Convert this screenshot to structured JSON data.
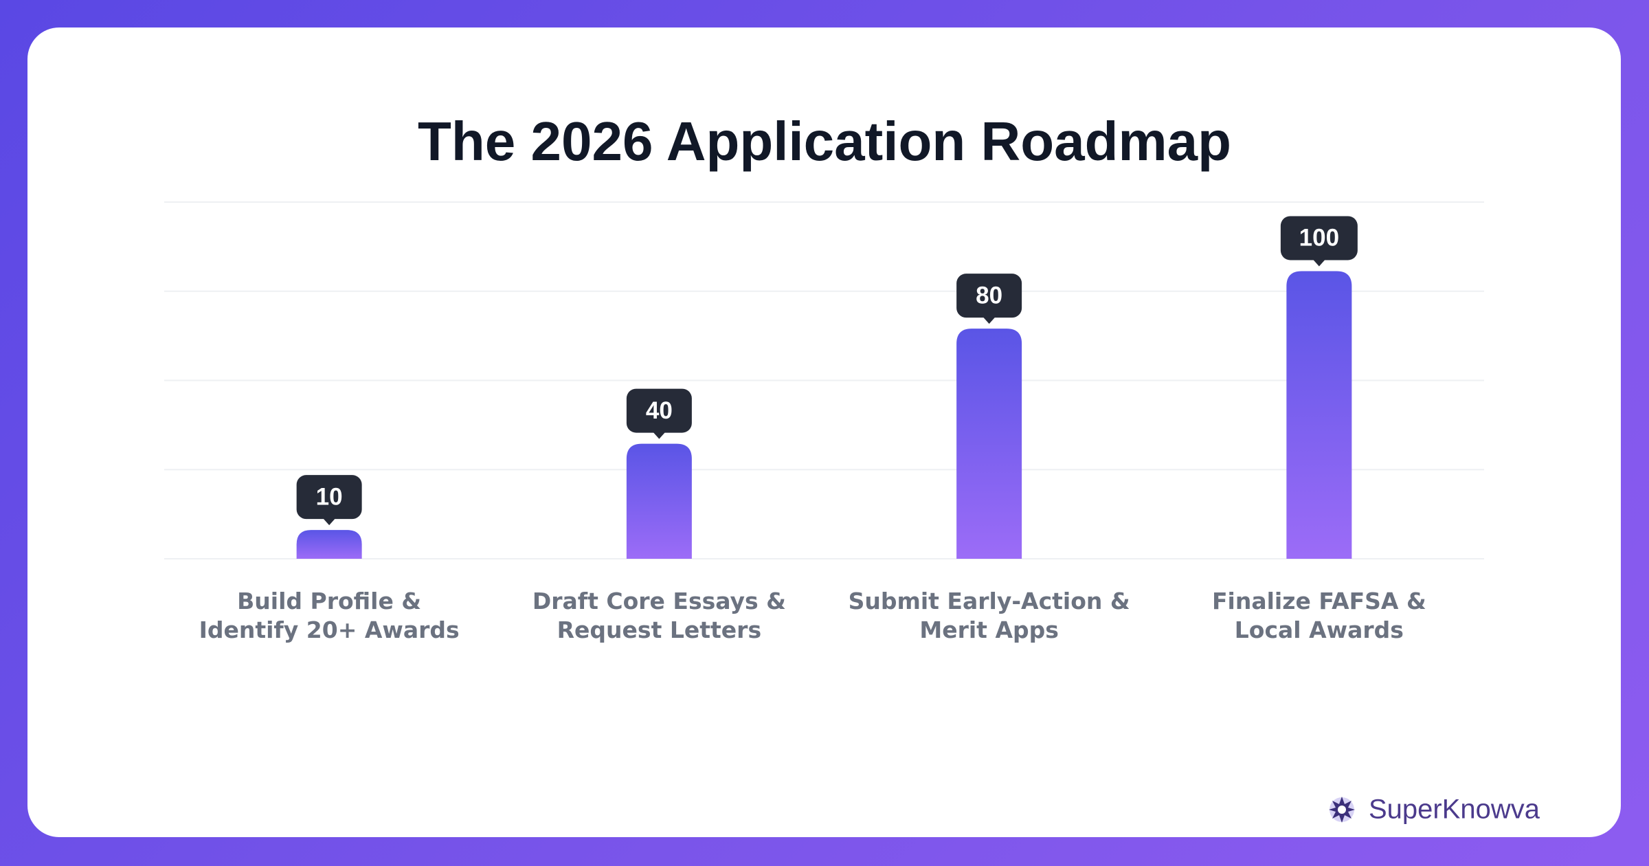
{
  "chart_data": {
    "type": "bar",
    "title": "The 2026 Application Roadmap",
    "categories": [
      "Build Profile & Identify 20+ Awards",
      "Draft Core Essays & Request Letters",
      "Submit Early-Action & Merit Apps",
      "Finalize FAFSA & Local Awards"
    ],
    "values": [
      10,
      40,
      80,
      100
    ],
    "gradient": [
      "#5a55e6",
      "#9c6cf7"
    ],
    "ylim": [
      0,
      124
    ],
    "grid": true
  },
  "brand": "SuperKnowva"
}
